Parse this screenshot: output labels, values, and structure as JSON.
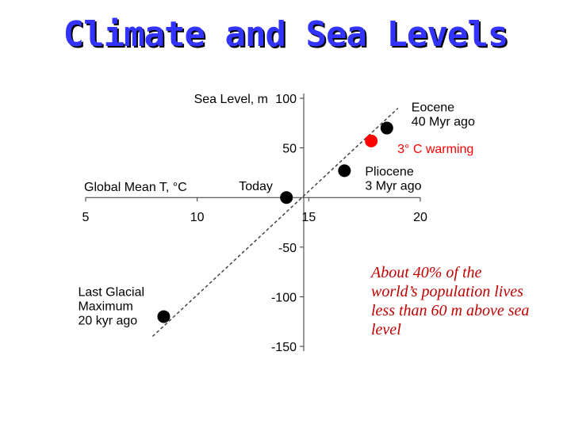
{
  "slide": {
    "title": "Climate and Sea Levels",
    "note": "About 40% of the world’s population lives less than 60 m above sea level"
  },
  "chart_data": {
    "type": "scatter",
    "xlabel": "Global Mean T, °C",
    "ylabel": "Sea Level, m",
    "xlim": [
      5,
      20
    ],
    "ylim": [
      -150,
      100
    ],
    "x_ticks": [
      5,
      10,
      15,
      20
    ],
    "y_ticks": [
      100,
      50,
      -50,
      -100,
      -150
    ],
    "trend_line": {
      "from": [
        8,
        -140
      ],
      "to": [
        19,
        90
      ],
      "style": "dashed"
    },
    "points": [
      {
        "label": "Last Glacial Maximum 20 kyr ago",
        "lines": [
          "Last Glacial",
          "Maximum",
          "20 kyr ago"
        ],
        "x": 8.5,
        "y": -120,
        "color": "#000000"
      },
      {
        "label": "Today",
        "lines": [
          "Today"
        ],
        "x": 14,
        "y": 0,
        "color": "#000000"
      },
      {
        "label": "Pliocene 3 Myr ago",
        "lines": [
          "Pliocene",
          "3 Myr ago"
        ],
        "x": 16.6,
        "y": 27,
        "color": "#000000"
      },
      {
        "label": "3° C warming",
        "lines": [
          "3° C warming"
        ],
        "x": 17.8,
        "y": 57,
        "color": "#ff0000"
      },
      {
        "label": "Eocene 40 Myr ago",
        "lines": [
          "Eocene",
          "40 Myr ago"
        ],
        "x": 18.5,
        "y": 70,
        "color": "#000000"
      }
    ]
  }
}
